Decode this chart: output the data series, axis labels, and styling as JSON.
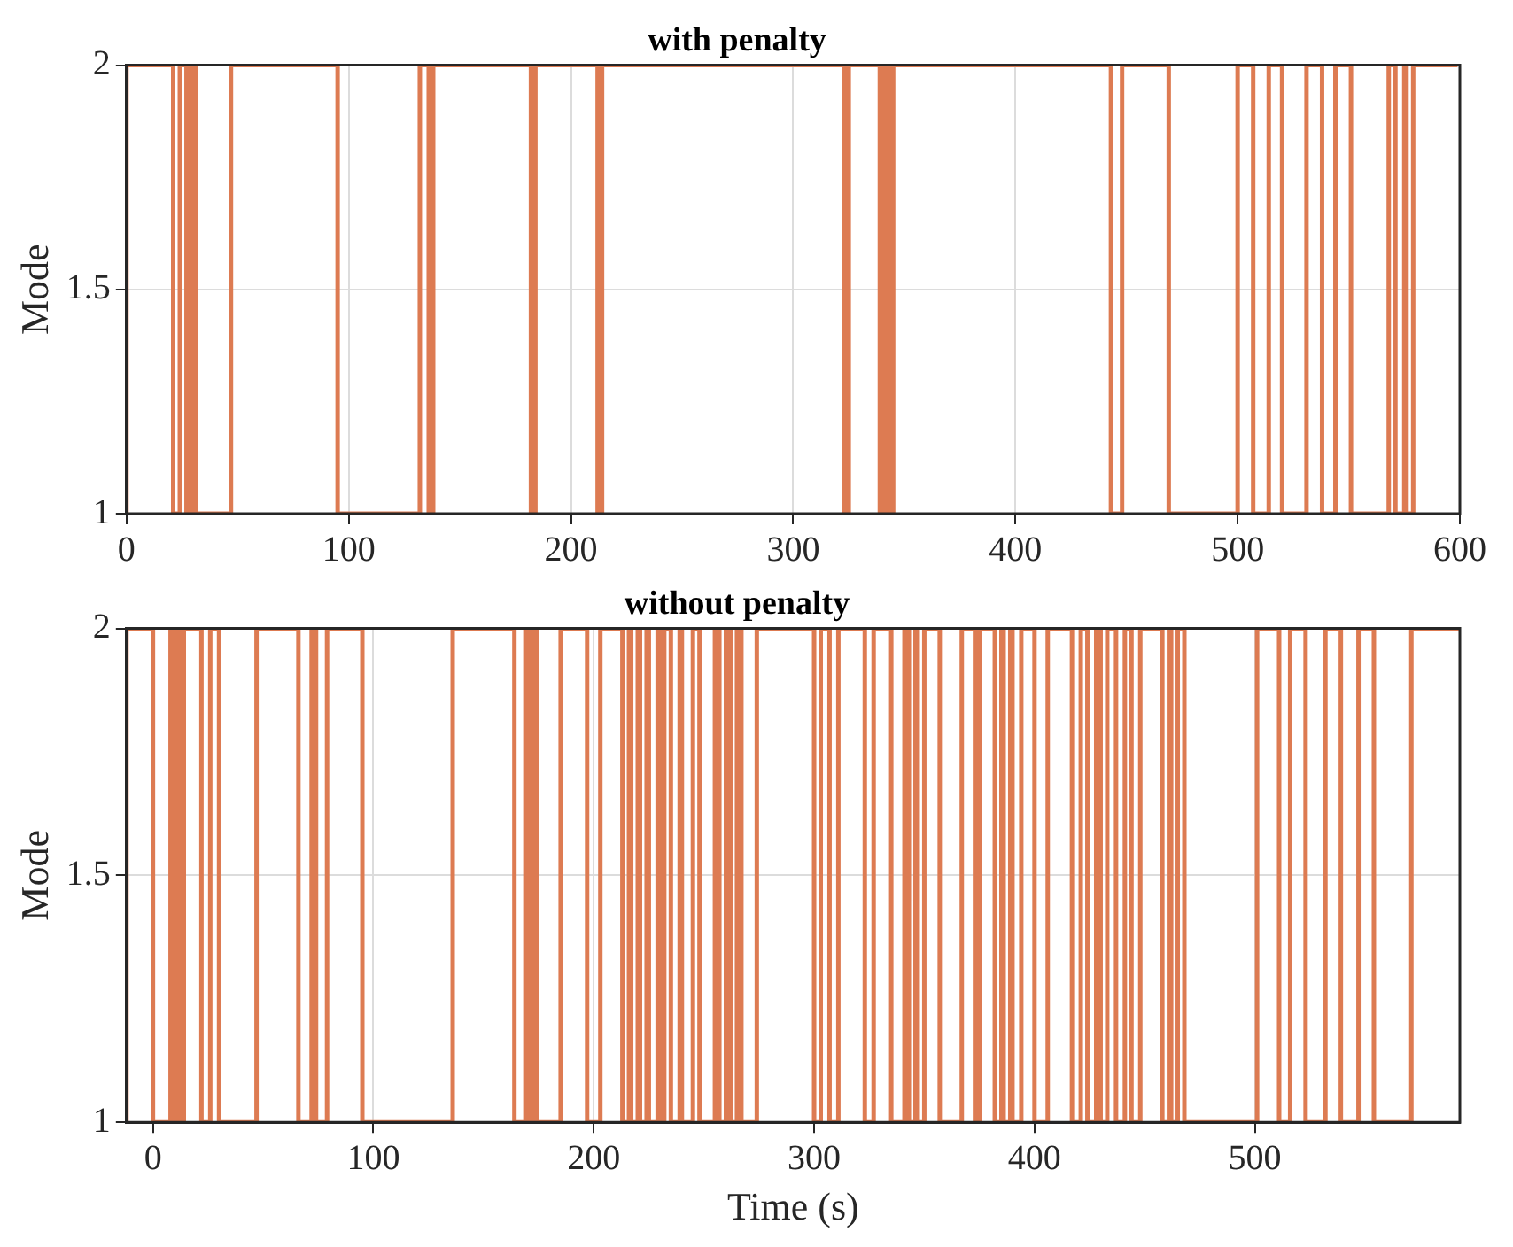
{
  "chart_data": [
    {
      "type": "step",
      "title": "with penalty",
      "ylabel": "Mode",
      "color": "#dd7b52",
      "xlim": [
        0,
        600
      ],
      "xticks": [
        0,
        100,
        200,
        300,
        400,
        500,
        600
      ],
      "ylim": [
        1,
        2
      ],
      "yticks": [
        1,
        1.5,
        2
      ],
      "grid": true,
      "x": [
        0,
        21,
        24,
        27,
        29,
        31,
        47,
        95,
        132,
        136,
        138,
        182,
        184,
        212,
        214,
        323,
        325,
        339,
        341,
        343,
        345,
        443,
        448,
        469,
        500,
        507,
        514,
        520,
        531,
        538,
        544,
        551,
        568,
        571,
        575,
        576,
        579,
        582,
        599
      ],
      "values": [
        1,
        2,
        1,
        2,
        1,
        2,
        1,
        2,
        1,
        2,
        1,
        2,
        1,
        2,
        1,
        2,
        1,
        2,
        1,
        2,
        1,
        2,
        1,
        2,
        1,
        2,
        1,
        2,
        1,
        2,
        1,
        2,
        1,
        2,
        1,
        2,
        1,
        2,
        2
      ]
    },
    {
      "type": "step",
      "title": "without penalty",
      "ylabel": "Mode",
      "xlabel": "Time (s)",
      "color": "#dd7b52",
      "xlim": [
        -12,
        593
      ],
      "xticks": [
        0,
        100,
        200,
        300,
        400,
        500
      ],
      "ylim": [
        1,
        2
      ],
      "yticks": [
        1,
        1.5,
        2
      ],
      "grid": true,
      "x": [
        -12,
        0,
        8,
        10,
        11,
        12,
        14,
        22,
        26,
        30,
        47,
        66,
        72,
        74,
        79,
        95,
        136,
        164,
        169,
        170,
        172,
        174,
        185,
        197,
        203,
        213,
        216,
        217,
        220,
        221,
        224,
        225,
        229,
        230,
        232,
        235,
        239,
        240,
        245,
        248,
        255,
        257,
        260,
        262,
        265,
        267,
        274,
        300,
        303,
        307,
        311,
        323,
        327,
        335,
        341,
        343,
        346,
        347,
        350,
        357,
        367,
        373,
        375,
        382,
        385,
        386,
        389,
        390,
        394,
        400,
        406,
        417,
        421,
        424,
        428,
        430,
        433,
        437,
        441,
        444,
        448,
        458,
        461,
        462,
        465,
        468,
        501,
        511,
        516,
        523,
        532,
        539,
        547,
        554,
        571,
        578,
        593
      ],
      "values": [
        1,
        2,
        1,
        2,
        1,
        2,
        1,
        2,
        1,
        2,
        1,
        2,
        1,
        2,
        1,
        2,
        1,
        2,
        1,
        2,
        1,
        2,
        1,
        2,
        1,
        2,
        1,
        2,
        1,
        2,
        1,
        2,
        1,
        2,
        1,
        2,
        1,
        2,
        1,
        2,
        1,
        2,
        1,
        2,
        1,
        2,
        1,
        2,
        1,
        2,
        1,
        2,
        1,
        2,
        1,
        2,
        1,
        2,
        1,
        2,
        1,
        2,
        1,
        2,
        1,
        2,
        1,
        2,
        1,
        2,
        1,
        2,
        1,
        2,
        1,
        2,
        1,
        2,
        1,
        2,
        1,
        2,
        1,
        2,
        1,
        2,
        1,
        2,
        1,
        2,
        1,
        2,
        1,
        2,
        1,
        2,
        2
      ]
    }
  ]
}
